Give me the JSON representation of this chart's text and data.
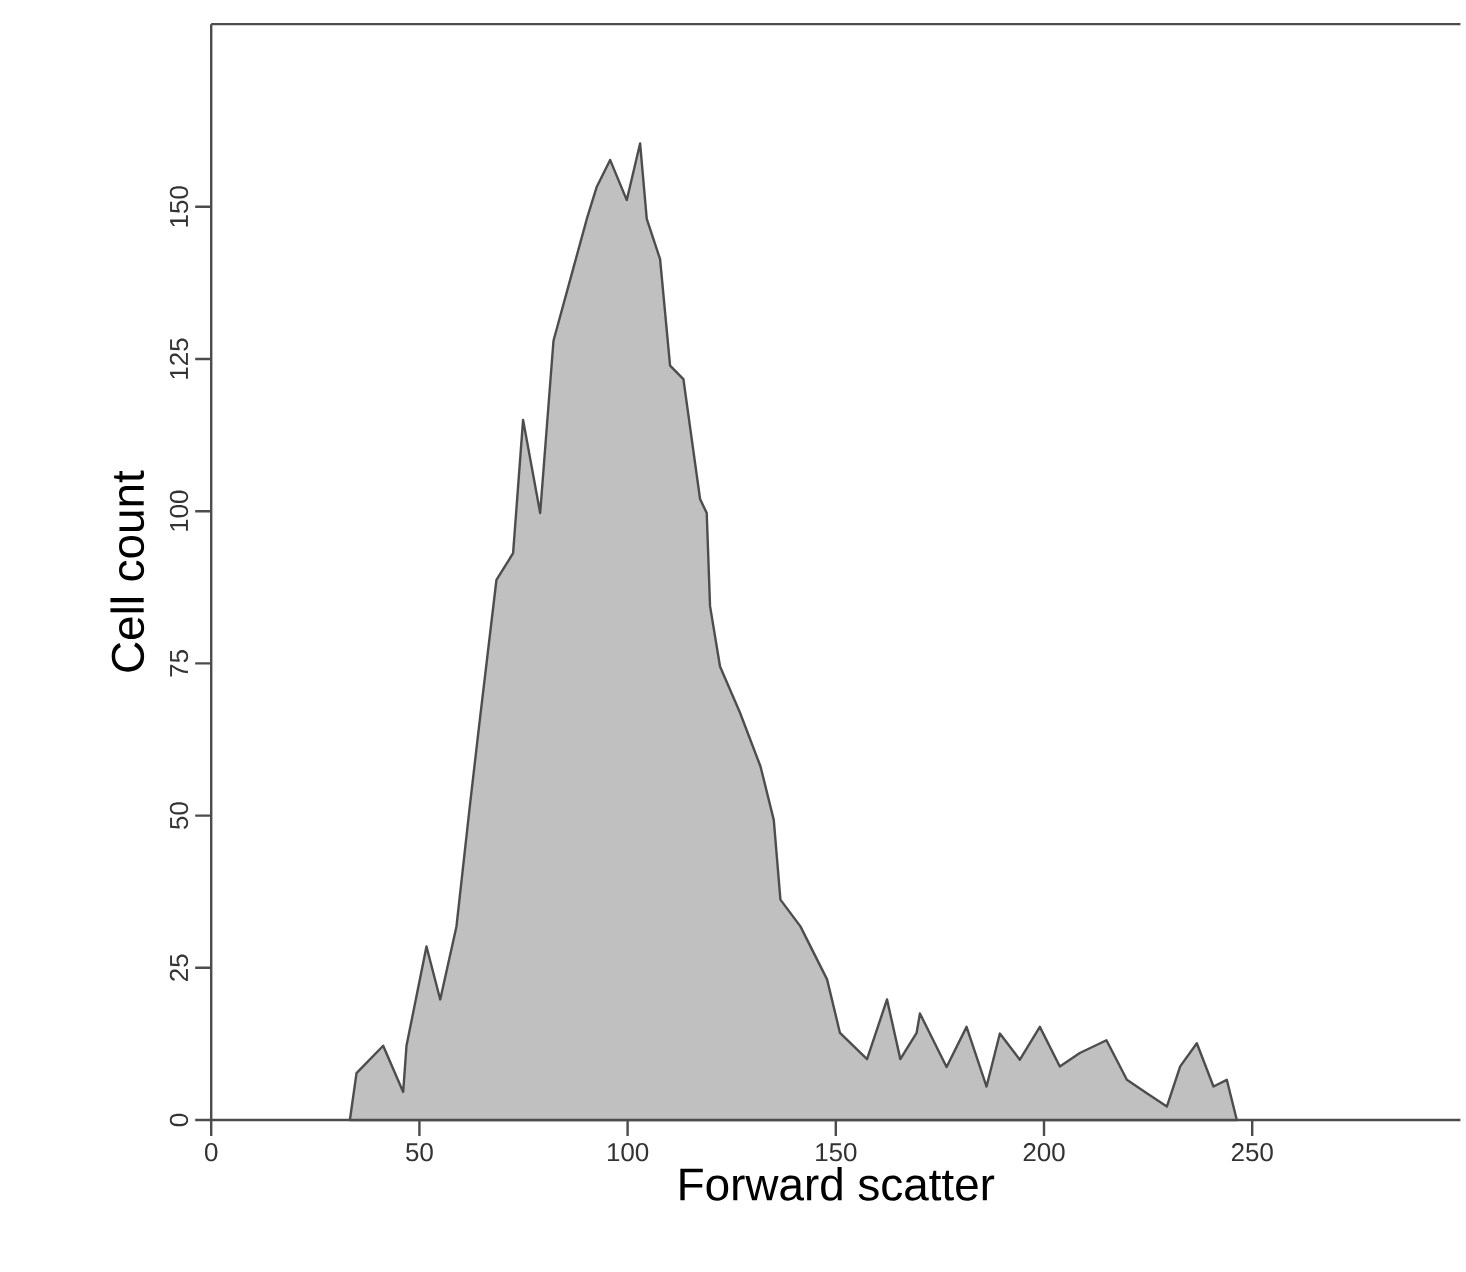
{
  "chart_data": {
    "type": "area",
    "xlabel": "Forward scatter",
    "ylabel": "Cell count",
    "xlim": [
      0,
      300
    ],
    "ylim": [
      0,
      180
    ],
    "xticks": [
      0,
      50,
      100,
      150,
      200,
      250
    ],
    "yticks": [
      0,
      25,
      50,
      75,
      100,
      125,
      150
    ],
    "series": [
      {
        "color": "#c0c0c0",
        "x": [
          33.3,
          34.9,
          41.3,
          46.1,
          46.9,
          51.7,
          55.0,
          58.9,
          62.1,
          64.5,
          68.5,
          72.5,
          74.9,
          79.0,
          82.2,
          87.0,
          90.2,
          92.6,
          95.8,
          99.8,
          103.0,
          104.6,
          107.8,
          110.2,
          113.4,
          117.4,
          119.0,
          119.8,
          122.2,
          127.0,
          131.9,
          135.1,
          136.7,
          141.5,
          147.9,
          151.0,
          157.5,
          162.3,
          165.5,
          169.4,
          170.2,
          176.6,
          181.4,
          186.2,
          189.4,
          194.2,
          199.0,
          203.8,
          208.6,
          215.0,
          219.9,
          224.7,
          229.5,
          232.7,
          236.7,
          240.7,
          243.9,
          246.3
        ],
        "values": [
          0,
          7.7,
          12.2,
          4.6,
          12.2,
          28.5,
          19.8,
          31.8,
          51.5,
          65.7,
          88.7,
          93.1,
          115,
          99.7,
          128,
          140,
          148,
          153.3,
          157.7,
          151.1,
          160.4,
          148,
          141.4,
          123.9,
          121.7,
          102,
          99.7,
          84.4,
          74.5,
          66.9,
          58.1,
          49.3,
          36.2,
          31.8,
          23.1,
          14.3,
          10.0,
          19.8,
          10.0,
          14.3,
          17.5,
          8.7,
          15.3,
          5.5,
          14.2,
          9.9,
          15.3,
          8.8,
          11.0,
          13.1,
          6.6,
          4.4,
          2.2,
          8.8,
          12.6,
          5.5,
          6.6,
          0
        ]
      }
    ]
  }
}
